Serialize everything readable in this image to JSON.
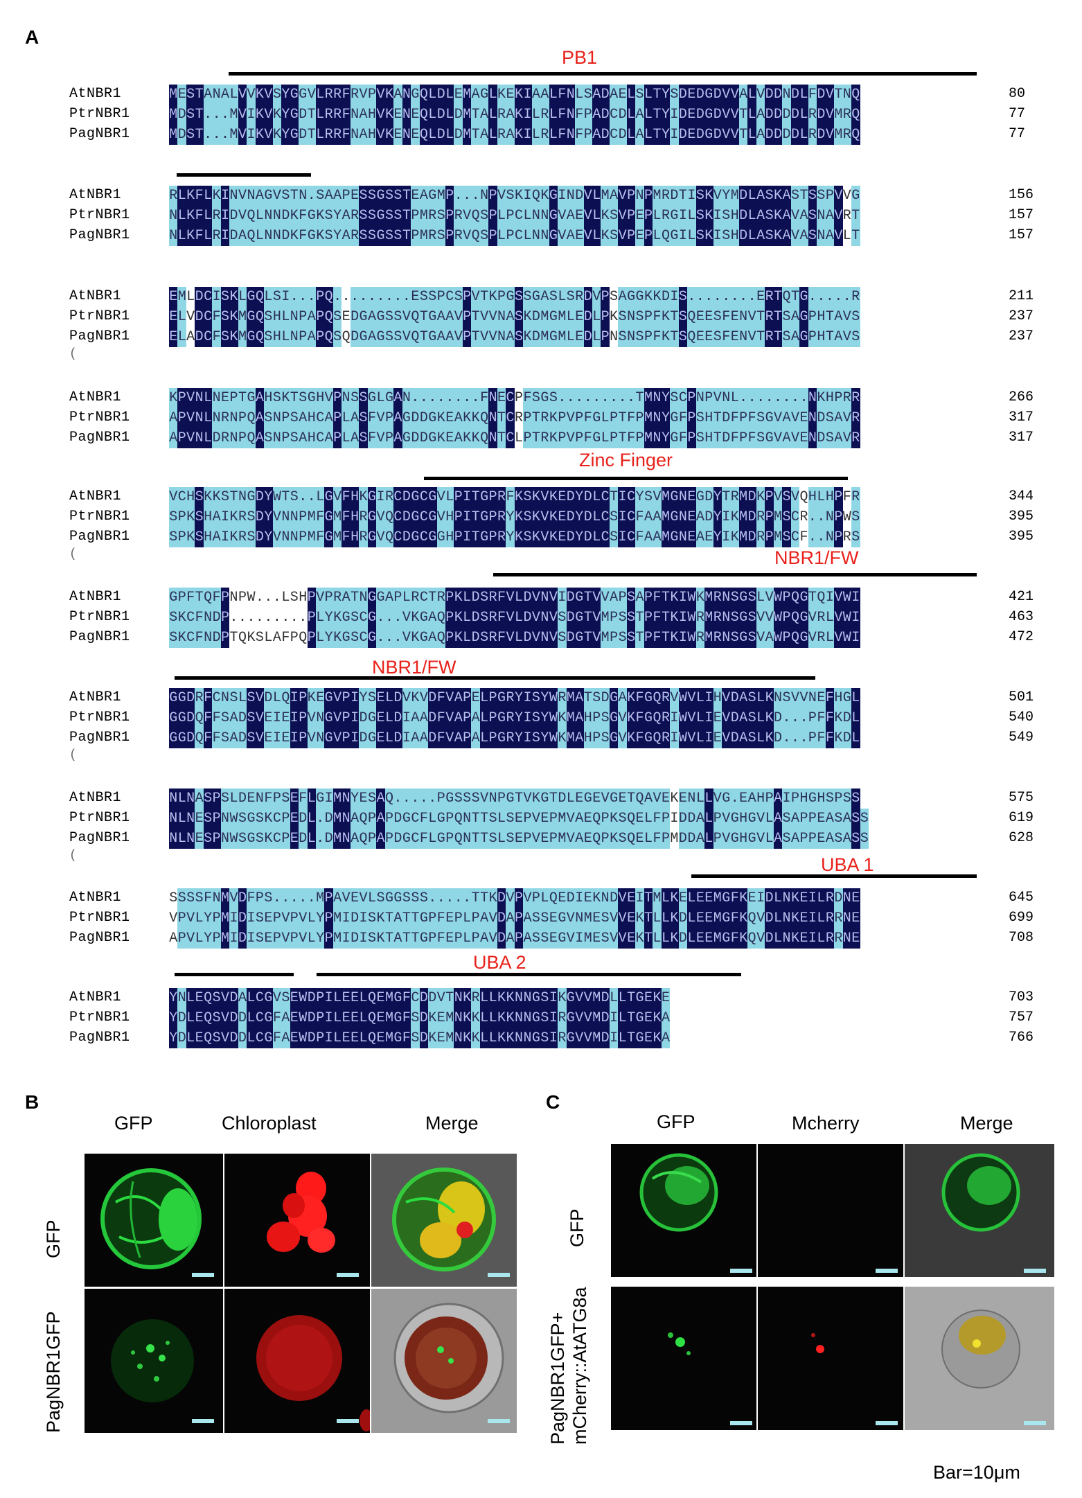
{
  "panels": {
    "a": "A",
    "b": "B",
    "c": "C"
  },
  "domains": {
    "pb1": "PB1",
    "zinc_finger": "Zinc Finger",
    "nbr1fw_1": "NBR1/FW",
    "nbr1fw_2": "NBR1/FW",
    "uba1": "UBA 1",
    "uba2": "UBA 2"
  },
  "alignment": {
    "names": [
      "AtNBR1",
      "PtrNBR1",
      "PagNBR1"
    ],
    "blocks": [
      {
        "rows": [
          {
            "seq": "MESTANALVVKVSYGGVLRRFRVPVKANGQLDLEMAGLKEKIAALFNLSADAELSLTYSDEDGDVVALVDDNDLFDVTNQ",
            "num": "80"
          },
          {
            "seq": "MDST...MVIKVKYGDTLRRFNAHVKENEQLDLDMTALRAKILRLFNFPADCDLALTYIDEDGDVVTLADDDDLRDVMRQ",
            "num": "77"
          },
          {
            "seq": "MDST...MVIKVKYGDTLRRFNAHVKENEQLDLDMTALRAKILRLFNFPADCDLALTYIDEDGDVVTLADDDDLRDVMRQ",
            "num": "77"
          }
        ]
      },
      {
        "rows": [
          {
            "seq": "RLKFLKINVNAGVSTN.SAAPESSGSSTEAGMP...NPVSKIQKGINDVLMAVPNPMRDTISKVYMDLASKASTSSPVVG",
            "num": "156"
          },
          {
            "seq": "NLKFLRIDVQLNNDKFGKSYARSSGSSTPMRSPRVQSPLPCLNNGVAEVLKSVPEPLRGILSKISHDLASKAVASNAVRT",
            "num": "157"
          },
          {
            "seq": "NLKFLRIDAQLNNDKFGKSYARSSGSSTPMRSPRVQSPLPCLNNGVAEVLKSVPEPLQGILSKISHDLASKAVASNAVLT",
            "num": "157"
          }
        ]
      },
      {
        "rows": [
          {
            "seq": "EMLDCISKLGQLSI...PQ.........ESSPCSPVTKPGSSGASLSRDVPSAGGKKDIS........ERTQTG.....R",
            "num": "211"
          },
          {
            "seq": "ELVDCFSKMGQSHLNPAPQSEDGAGSSVQTGAAVPTVVNASKDMGMLEDLPKSNSPFKTSQEESFENVTRTSAGPHTAVS",
            "num": "237"
          },
          {
            "seq": "ELADCFSKMGQSHLNPAPQSQDGAGSSVQTGAAVPTVVNASKDMGMLEDLPNSNSPFKTSQEESFENVTRTSAGPHTAVS",
            "num": "237"
          }
        ],
        "paren": "("
      },
      {
        "rows": [
          {
            "seq": "KPVNLNEPTGAHSKTSGHVPNSSGLGAN........FNECPFSGS.........TMNYSCPNPVNL........NKHPRR",
            "num": "266"
          },
          {
            "seq": "APVNLNRNPQASNPSAHCAPLASFVPAGDDGKEAKKQNTCRPTRKPVPFGLPTFPMNYGFPSHTDFPFSGVAVENDSAVR",
            "num": "317"
          },
          {
            "seq": "APVNLDRNPQASNPSAHCAPLASFVPAGDDGKEAKKQNTCLPTRKPVPFGLPTFPMNYGFPSHTDFPFSGVAVENDSAVR",
            "num": "317"
          }
        ]
      },
      {
        "rows": [
          {
            "seq": "VCHSKKSTNGDYWTS..LGVFHKGIRCDGCGVLPITGPRFKSKVKEDYDLCTICYSVMGNEGDYTRMDKPVSVQHLHPFR",
            "num": "344"
          },
          {
            "seq": "SPKSHAIKRSDYVNNPMFGMFHRGVQCDGCGVHPITGPRYKSKVKEDYDLCSICFAAMGNEADYIKMDRPMSCR..NPWS",
            "num": "395"
          },
          {
            "seq": "SPKSHAIKRSDYVNNPMFGMFHRGVQCDGCGGHPITGPRYKSKVKEDYDLCSICFAAMGNEAEYIKMDRPMSCF..NPRS",
            "num": "395"
          }
        ],
        "paren": "("
      },
      {
        "rows": [
          {
            "seq": "GPFTQFPNPW...LSHPVPRATNGGAPLRCTRPKLDSRFVLDVNVIDGTVVAPSAPFTKIWKMRNSGSLVWPQGTQIVWI",
            "num": "421"
          },
          {
            "seq": "SKCFNDP.........PLYKGSCG...VKGAQPKLDSRFVLDVNVSDGTVMPSSTPFTKIWRMRNSGSVVWPQGVRLVWI",
            "num": "463"
          },
          {
            "seq": "SKCFNDPTQKSLAFPQPLYKGSCG...VKGAQPKLDSRFVLDVNVSDGTVMPSSTPFTKIWRMRNSGSVAWPQGVRLVWI",
            "num": "472"
          }
        ]
      },
      {
        "rows": [
          {
            "seq": "GGDRFCNSLSVDLQIPKEGVPIYSELDVKVDFVAPELPGRYISYWRMATSDGAKFGQRVWVLIHVDASLKNSVVNEFHGL",
            "num": "501"
          },
          {
            "seq": "GGDQFFSADSVEIEIPVNGVPIDGELDIAADFVAPALPGRYISYWKMAHPSGVKFGQRIWVLIEVDASLKD...PFFKDL",
            "num": "540"
          },
          {
            "seq": "GGDQFFSADSVEIEIPVNGVPIDGELDIAADFVAPALPGRYISYWKMAHPSGVKFGQRIWVLIEVDASLKD...PFFKDL",
            "num": "549"
          }
        ],
        "paren": "("
      },
      {
        "rows": [
          {
            "seq": "NLNASPSLDENFPSEFLGIMNYESAQ.....PGSSSVNPGTVKGTDLEGEVGETQAVEKENLLVG.EAHPAIPHGHSPSS",
            "num": "575"
          },
          {
            "seq": "NLNESPNWSGSKCPEDL.DMNAQPAPDGCFLGPQNTTSLSEPVEPMVAEQPKSQELFPIDDALPVGHGVLASAPPEASASS",
            "num": "619"
          },
          {
            "seq": "NLNESPNWSGSKCPEDL.DMNAQPAPDGCFLGPQNTTSLSEPVEPMVAEQPKSQELFPMDDALPVGHGVLASAPPEASASS",
            "num": "628"
          }
        ],
        "paren": "("
      },
      {
        "rows": [
          {
            "seq": "SSSSFNMVDFPS.....MPAVEVLSGGSSS.....TTKDVPVPLQEDIEKNDVEITMLKELEEMGFKEIDLNKEILRDNE",
            "num": "645"
          },
          {
            "seq": "VPVLYPMIDISEPVPVLYPMIDISKTATTGPFEPLPAVDAPASSEGVNMESVVEKTLLKDLEEMGFKQVDLNKEILRRNE",
            "num": "699"
          },
          {
            "seq": "APVLYPMIDISEPVPVLYPMIDISKTATTGPFEPLPAVDAPASSEGVIMESVVEKTLLKDLEEMGFKQVDLNKEILRRNE",
            "num": "708"
          }
        ]
      },
      {
        "rows": [
          {
            "seq": "YNLEQSVDALCGVSEWDPILEELQEMGFCDDVTNKRLLKKNNGSIKGVVMDLLTGEKE",
            "num": "703"
          },
          {
            "seq": "YDLEQSVDDLCGFAEWDPILEELQEMGFSDKEMNKKLLKKNNGSIRGVVMDILTGEKA",
            "num": "757"
          },
          {
            "seq": "YDLEQSVDDLCGFAEWDPILEELQEMGFSDKEMNKKLLKKNNGSIRGVVMDILTGEKA",
            "num": "766"
          }
        ]
      }
    ]
  },
  "panel_b": {
    "columns": [
      "GFP",
      "Chloroplast",
      "Merge"
    ],
    "rows": [
      "GFP",
      "PagNBR1GFP"
    ]
  },
  "panel_c": {
    "columns": [
      "GFP",
      "Mcherry",
      "Merge"
    ],
    "rows": [
      "GFP",
      "PagNBR1GFP+",
      "mCherry::AtATG8a"
    ]
  },
  "scale_label": "Bar=10μm",
  "colors": {
    "identical": "#0c0f52",
    "similar": "#8fd7e4",
    "domain_label": "#e8211a"
  }
}
